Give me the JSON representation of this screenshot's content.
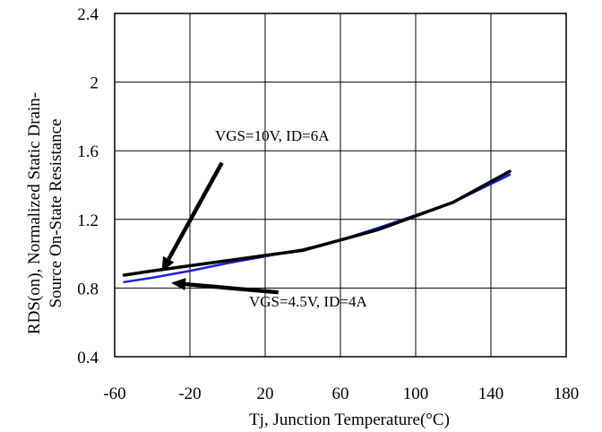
{
  "chart_data": {
    "type": "line",
    "xlabel": "Tj, Junction Temperature(°C)",
    "ylabel_line1": "RDS(on), Normalized Static Drain-",
    "ylabel_line2": "Source On-State Resistance",
    "xlim": [
      -60,
      180
    ],
    "ylim": [
      0.4,
      2.4
    ],
    "xticks": [
      -60,
      -20,
      20,
      60,
      100,
      140,
      180
    ],
    "yticks": [
      0.4,
      0.8,
      1.2,
      1.6,
      2.0,
      2.4
    ],
    "xtick_labels": [
      "-60",
      "-20",
      "20",
      "60",
      "100",
      "140",
      "180"
    ],
    "ytick_labels": [
      "0.4",
      "0.8",
      "1.2",
      "1.6",
      "2",
      "2.4"
    ],
    "grid": true,
    "x": [
      -55,
      -40,
      -20,
      0,
      20,
      40,
      60,
      80,
      100,
      120,
      150
    ],
    "series": [
      {
        "color": "#000000",
        "values": [
          0.875,
          0.9,
          0.93,
          0.96,
          0.99,
          1.02,
          1.08,
          1.14,
          1.22,
          1.3,
          1.48
        ]
      },
      {
        "color": "#1f1fd0",
        "values": [
          0.835,
          0.86,
          0.9,
          0.945,
          0.985,
          1.025,
          1.08,
          1.15,
          1.225,
          1.3,
          1.46
        ]
      }
    ],
    "annotations": [
      {
        "text": "VGS=10V, ID=6A",
        "from": [
          -3,
          1.53
        ],
        "to": [
          -35,
          0.895
        ]
      },
      {
        "text": "VGS=4.5V, ID=4A",
        "from": [
          27,
          0.775
        ],
        "to": [
          -30,
          0.83
        ]
      }
    ]
  }
}
